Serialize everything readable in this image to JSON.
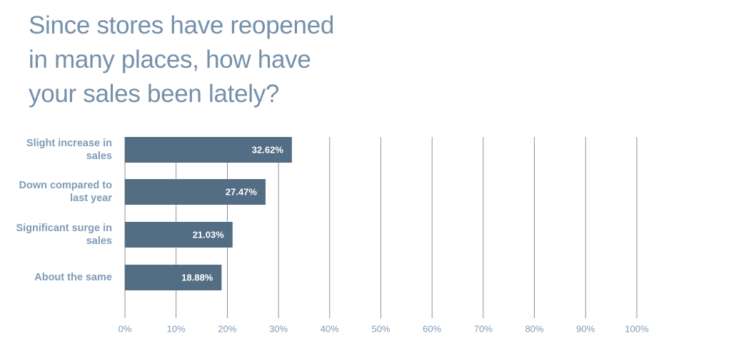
{
  "chart_data": {
    "type": "bar",
    "orientation": "horizontal",
    "title": "Since stores have reopened in many places, how have your sales been lately?",
    "categories": [
      "Slight increase in sales",
      "Down compared to last year",
      "Significant surge in sales",
      "About the same"
    ],
    "values": [
      32.62,
      27.47,
      21.03,
      18.88
    ],
    "value_labels": [
      "32.62%",
      "27.47%",
      "21.03%",
      "18.88%"
    ],
    "color": "#526d84",
    "xlim": [
      0,
      100
    ],
    "xticks": [
      {
        "value": 0,
        "label": "0%"
      },
      {
        "value": 10,
        "label": "10%"
      },
      {
        "value": 20,
        "label": "20%"
      },
      {
        "value": 30,
        "label": "30%"
      },
      {
        "value": 40,
        "label": "40%"
      },
      {
        "value": 50,
        "label": "50%"
      },
      {
        "value": 60,
        "label": "60%"
      },
      {
        "value": 70,
        "label": "70%"
      },
      {
        "value": 80,
        "label": "80%"
      },
      {
        "value": 90,
        "label": "90%"
      },
      {
        "value": 100,
        "label": "100%"
      }
    ],
    "grid": true
  }
}
